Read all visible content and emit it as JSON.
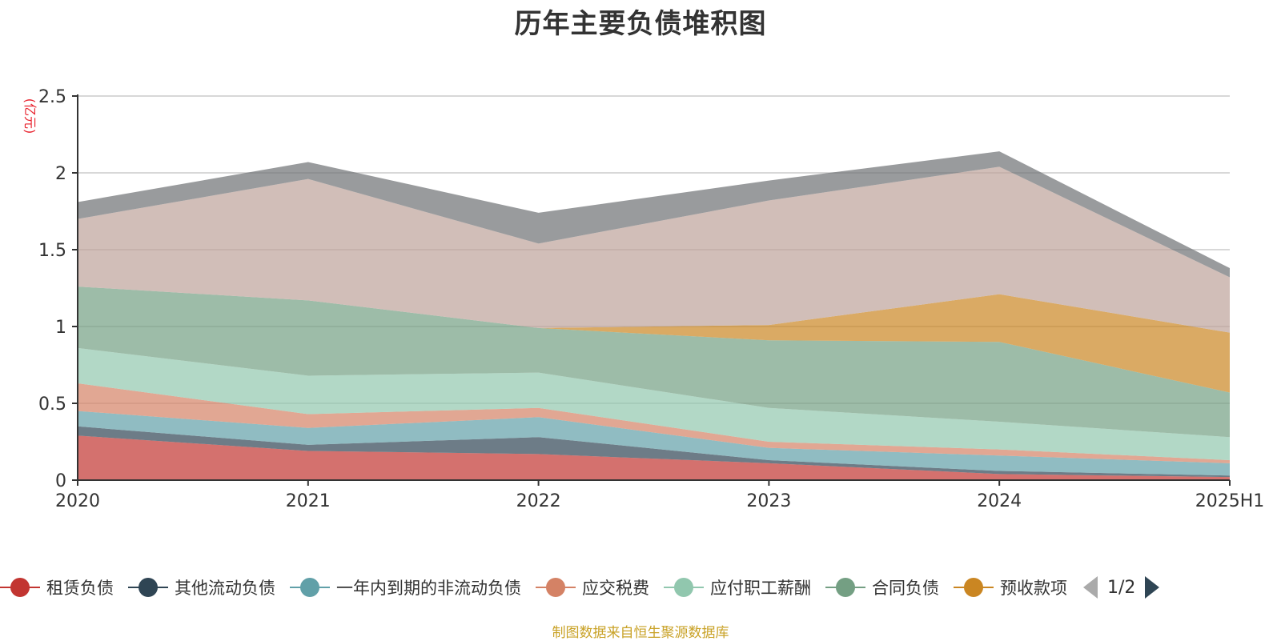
{
  "title": "历年主要负债堆积图",
  "source_note": "制图数据来自恒生聚源数据库",
  "pager": "1/2",
  "chart_data": {
    "type": "area",
    "stacked": true,
    "title": "历年主要负债堆积图",
    "ylabel": "(亿元)",
    "ylim": [
      0,
      2.5
    ],
    "yticks": [
      0,
      0.5,
      1,
      1.5,
      2,
      2.5
    ],
    "ytick_labels": [
      "0",
      "0.5",
      "1",
      "1.5",
      "2",
      "2.5"
    ],
    "grid": true,
    "legend_position": "bottom",
    "x": [
      "2020",
      "2021",
      "2022",
      "2023",
      "2024",
      "2025H1"
    ],
    "series": [
      {
        "name": "租赁负债",
        "color": "#c23531",
        "legend": true,
        "values": [
          0.29,
          0.19,
          0.17,
          0.11,
          0.04,
          0.02
        ]
      },
      {
        "name": "其他流动负债",
        "color": "#2f4554",
        "legend": true,
        "values": [
          0.06,
          0.04,
          0.11,
          0.02,
          0.02,
          0.01
        ]
      },
      {
        "name": "一年内到期的非流动负债",
        "color": "#61a0a8",
        "legend": true,
        "values": [
          0.1,
          0.11,
          0.13,
          0.08,
          0.1,
          0.08
        ]
      },
      {
        "name": "应交税费",
        "color": "#d48265",
        "legend": true,
        "values": [
          0.18,
          0.09,
          0.06,
          0.04,
          0.04,
          0.02
        ]
      },
      {
        "name": "应付职工薪酬",
        "color": "#91c7ae",
        "legend": true,
        "values": [
          0.23,
          0.25,
          0.23,
          0.22,
          0.18,
          0.15
        ]
      },
      {
        "name": "合同负债",
        "color": "#749f83",
        "legend": true,
        "values": [
          0.4,
          0.49,
          0.29,
          0.44,
          0.52,
          0.29
        ]
      },
      {
        "name": "预收款项",
        "color": "#ca8622",
        "legend": true,
        "values": [
          0.0,
          0.0,
          0.0,
          0.1,
          0.31,
          0.39
        ]
      },
      {
        "name": "",
        "color": "#bda29a",
        "legend": false,
        "values": [
          0.44,
          0.79,
          0.55,
          0.81,
          0.83,
          0.36
        ]
      },
      {
        "name": "",
        "color": "#6e7074",
        "legend": false,
        "values": [
          0.11,
          0.11,
          0.2,
          0.13,
          0.1,
          0.06
        ]
      }
    ]
  }
}
